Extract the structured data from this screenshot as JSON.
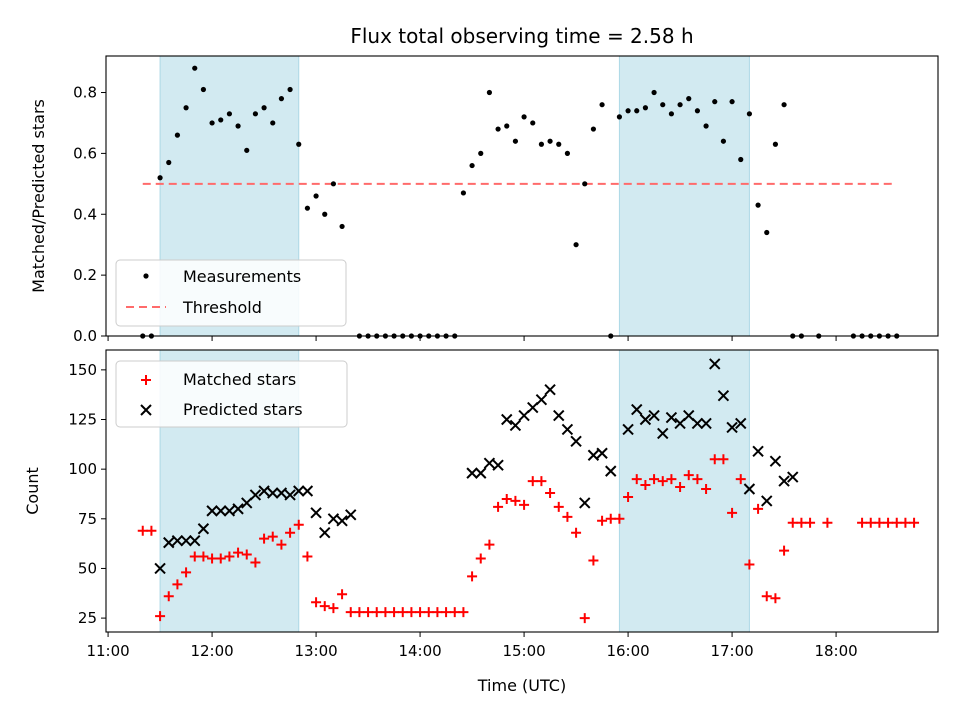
{
  "title": "Flux total observing time = 2.58 h",
  "colors": {
    "band": "#add8e6",
    "threshold": "#ff6b6b",
    "matched": "#ff0000",
    "predicted": "#000000",
    "measure": "#000000"
  },
  "chart_data": [
    {
      "type": "scatter",
      "panel": "top",
      "ylabel": "Matched/Predicted stars",
      "xlabel": "",
      "xlim_hours": [
        10.98,
        18.98
      ],
      "ylim": [
        0,
        0.92
      ],
      "yticks": [
        0.0,
        0.2,
        0.4,
        0.6,
        0.8
      ],
      "ytick_labels": [
        "0.0",
        "0.2",
        "0.4",
        "0.6",
        "0.8"
      ],
      "grid": false,
      "legend": {
        "placement": "lower-left",
        "entries": [
          "Measurements",
          "Threshold"
        ]
      },
      "shaded_intervals": [
        [
          "11:30",
          "12:50"
        ],
        [
          "15:55",
          "17:10"
        ]
      ],
      "threshold": {
        "name": "Threshold",
        "value": 0.5,
        "x_range": [
          "11:20",
          "18:35"
        ]
      },
      "series": [
        {
          "name": "Measurements",
          "marker": "dot",
          "points": [
            [
              "11:20",
              0
            ],
            [
              "11:25",
              0
            ],
            [
              "11:30",
              0.52
            ],
            [
              "11:35",
              0.57
            ],
            [
              "11:40",
              0.66
            ],
            [
              "11:45",
              0.75
            ],
            [
              "11:50",
              0.88
            ],
            [
              "11:55",
              0.81
            ],
            [
              "12:00",
              0.7
            ],
            [
              "12:05",
              0.71
            ],
            [
              "12:10",
              0.73
            ],
            [
              "12:15",
              0.69
            ],
            [
              "12:20",
              0.61
            ],
            [
              "12:25",
              0.73
            ],
            [
              "12:30",
              0.75
            ],
            [
              "12:35",
              0.7
            ],
            [
              "12:40",
              0.78
            ],
            [
              "12:45",
              0.81
            ],
            [
              "12:50",
              0.63
            ],
            [
              "12:55",
              0.42
            ],
            [
              "13:00",
              0.46
            ],
            [
              "13:05",
              0.4
            ],
            [
              "13:10",
              0.5
            ],
            [
              "13:15",
              0.36
            ],
            [
              "13:25",
              0
            ],
            [
              "13:30",
              0
            ],
            [
              "13:35",
              0
            ],
            [
              "13:40",
              0
            ],
            [
              "13:45",
              0
            ],
            [
              "13:50",
              0
            ],
            [
              "13:55",
              0
            ],
            [
              "14:00",
              0
            ],
            [
              "14:05",
              0
            ],
            [
              "14:10",
              0
            ],
            [
              "14:15",
              0
            ],
            [
              "14:20",
              0
            ],
            [
              "14:25",
              0.47
            ],
            [
              "14:30",
              0.56
            ],
            [
              "14:35",
              0.6
            ],
            [
              "14:40",
              0.8
            ],
            [
              "14:45",
              0.68
            ],
            [
              "14:50",
              0.69
            ],
            [
              "14:55",
              0.64
            ],
            [
              "15:00",
              0.72
            ],
            [
              "15:05",
              0.7
            ],
            [
              "15:10",
              0.63
            ],
            [
              "15:15",
              0.64
            ],
            [
              "15:20",
              0.63
            ],
            [
              "15:25",
              0.6
            ],
            [
              "15:30",
              0.3
            ],
            [
              "15:35",
              0.5
            ],
            [
              "15:40",
              0.68
            ],
            [
              "15:45",
              0.76
            ],
            [
              "15:50",
              0
            ],
            [
              "15:55",
              0.72
            ],
            [
              "16:00",
              0.74
            ],
            [
              "16:05",
              0.74
            ],
            [
              "16:10",
              0.75
            ],
            [
              "16:15",
              0.8
            ],
            [
              "16:20",
              0.76
            ],
            [
              "16:25",
              0.73
            ],
            [
              "16:30",
              0.76
            ],
            [
              "16:35",
              0.78
            ],
            [
              "16:40",
              0.74
            ],
            [
              "16:45",
              0.69
            ],
            [
              "16:50",
              0.77
            ],
            [
              "16:55",
              0.64
            ],
            [
              "17:00",
              0.77
            ],
            [
              "17:05",
              0.58
            ],
            [
              "17:10",
              0.73
            ],
            [
              "17:15",
              0.43
            ],
            [
              "17:20",
              0.34
            ],
            [
              "17:25",
              0.63
            ],
            [
              "17:30",
              0.76
            ],
            [
              "17:35",
              0
            ],
            [
              "17:40",
              0
            ],
            [
              "17:50",
              0
            ],
            [
              "18:10",
              0
            ],
            [
              "18:15",
              0
            ],
            [
              "18:20",
              0
            ],
            [
              "18:25",
              0
            ],
            [
              "18:30",
              0
            ],
            [
              "18:35",
              0
            ]
          ]
        }
      ]
    },
    {
      "type": "scatter",
      "panel": "bottom",
      "ylabel": "Count",
      "xlabel": "Time (UTC)",
      "xlim_hours": [
        10.98,
        18.98
      ],
      "xticks": [
        "11:00",
        "12:00",
        "13:00",
        "14:00",
        "15:00",
        "16:00",
        "17:00",
        "18:00"
      ],
      "ylim": [
        18,
        160
      ],
      "yticks": [
        25,
        50,
        75,
        100,
        125,
        150
      ],
      "grid": false,
      "legend": {
        "placement": "top-left",
        "entries": [
          "Matched stars",
          "Predicted stars"
        ]
      },
      "shaded_intervals": [
        [
          "11:30",
          "12:50"
        ],
        [
          "15:55",
          "17:10"
        ]
      ],
      "series": [
        {
          "name": "Matched stars",
          "marker": "plus",
          "points": [
            [
              "11:20",
              69
            ],
            [
              "11:25",
              69
            ],
            [
              "11:30",
              26
            ],
            [
              "11:35",
              36
            ],
            [
              "11:40",
              42
            ],
            [
              "11:45",
              48
            ],
            [
              "11:50",
              56
            ],
            [
              "11:55",
              56
            ],
            [
              "12:00",
              55
            ],
            [
              "12:05",
              55
            ],
            [
              "12:10",
              56
            ],
            [
              "12:15",
              58
            ],
            [
              "12:20",
              57
            ],
            [
              "12:25",
              53
            ],
            [
              "12:30",
              65
            ],
            [
              "12:35",
              66
            ],
            [
              "12:40",
              62
            ],
            [
              "12:45",
              68
            ],
            [
              "12:50",
              72
            ],
            [
              "12:55",
              56
            ],
            [
              "13:00",
              33
            ],
            [
              "13:05",
              31
            ],
            [
              "13:10",
              30
            ],
            [
              "13:15",
              37
            ],
            [
              "13:20",
              28
            ],
            [
              "13:25",
              28
            ],
            [
              "13:30",
              28
            ],
            [
              "13:35",
              28
            ],
            [
              "13:40",
              28
            ],
            [
              "13:45",
              28
            ],
            [
              "13:50",
              28
            ],
            [
              "13:55",
              28
            ],
            [
              "14:00",
              28
            ],
            [
              "14:05",
              28
            ],
            [
              "14:10",
              28
            ],
            [
              "14:15",
              28
            ],
            [
              "14:20",
              28
            ],
            [
              "14:25",
              28
            ],
            [
              "14:30",
              46
            ],
            [
              "14:35",
              55
            ],
            [
              "14:40",
              62
            ],
            [
              "14:45",
              81
            ],
            [
              "14:50",
              85
            ],
            [
              "14:55",
              84
            ],
            [
              "15:00",
              82
            ],
            [
              "15:05",
              94
            ],
            [
              "15:10",
              94
            ],
            [
              "15:15",
              88
            ],
            [
              "15:20",
              81
            ],
            [
              "15:25",
              76
            ],
            [
              "15:30",
              68
            ],
            [
              "15:35",
              25
            ],
            [
              "15:40",
              54
            ],
            [
              "15:45",
              74
            ],
            [
              "15:50",
              75
            ],
            [
              "15:55",
              75
            ],
            [
              "16:00",
              86
            ],
            [
              "16:05",
              95
            ],
            [
              "16:10",
              92
            ],
            [
              "16:15",
              95
            ],
            [
              "16:20",
              94
            ],
            [
              "16:25",
              95
            ],
            [
              "16:30",
              91
            ],
            [
              "16:35",
              97
            ],
            [
              "16:40",
              95
            ],
            [
              "16:45",
              90
            ],
            [
              "16:50",
              105
            ],
            [
              "16:55",
              105
            ],
            [
              "17:00",
              78
            ],
            [
              "17:05",
              95
            ],
            [
              "17:10",
              52
            ],
            [
              "17:15",
              80
            ],
            [
              "17:20",
              36
            ],
            [
              "17:25",
              35
            ],
            [
              "17:30",
              59
            ],
            [
              "17:35",
              73
            ],
            [
              "17:40",
              73
            ],
            [
              "17:45",
              73
            ],
            [
              "17:55",
              73
            ],
            [
              "18:15",
              73
            ],
            [
              "18:20",
              73
            ],
            [
              "18:25",
              73
            ],
            [
              "18:30",
              73
            ],
            [
              "18:35",
              73
            ],
            [
              "18:40",
              73
            ],
            [
              "18:45",
              73
            ]
          ]
        },
        {
          "name": "Predicted stars",
          "marker": "x",
          "points": [
            [
              "11:30",
              50
            ],
            [
              "11:35",
              63
            ],
            [
              "11:40",
              64
            ],
            [
              "11:45",
              64
            ],
            [
              "11:50",
              64
            ],
            [
              "11:55",
              70
            ],
            [
              "12:00",
              79
            ],
            [
              "12:05",
              79
            ],
            [
              "12:10",
              79
            ],
            [
              "12:15",
              80
            ],
            [
              "12:20",
              83
            ],
            [
              "12:25",
              87
            ],
            [
              "12:30",
              89
            ],
            [
              "12:35",
              88
            ],
            [
              "12:40",
              88
            ],
            [
              "12:45",
              87
            ],
            [
              "12:50",
              89
            ],
            [
              "12:55",
              89
            ],
            [
              "13:00",
              78
            ],
            [
              "13:05",
              68
            ],
            [
              "13:10",
              75
            ],
            [
              "13:15",
              74
            ],
            [
              "13:20",
              77
            ],
            [
              "14:30",
              98
            ],
            [
              "14:35",
              98
            ],
            [
              "14:40",
              103
            ],
            [
              "14:45",
              102
            ],
            [
              "14:50",
              125
            ],
            [
              "14:55",
              122
            ],
            [
              "15:00",
              127
            ],
            [
              "15:05",
              131
            ],
            [
              "15:10",
              135
            ],
            [
              "15:15",
              140
            ],
            [
              "15:20",
              127
            ],
            [
              "15:25",
              120
            ],
            [
              "15:30",
              114
            ],
            [
              "15:35",
              83
            ],
            [
              "15:40",
              107
            ],
            [
              "15:45",
              108
            ],
            [
              "15:50",
              99
            ],
            [
              "16:00",
              120
            ],
            [
              "16:05",
              130
            ],
            [
              "16:10",
              125
            ],
            [
              "16:15",
              127
            ],
            [
              "16:20",
              118
            ],
            [
              "16:25",
              126
            ],
            [
              "16:30",
              123
            ],
            [
              "16:35",
              127
            ],
            [
              "16:40",
              123
            ],
            [
              "16:45",
              123
            ],
            [
              "16:50",
              153
            ],
            [
              "16:55",
              137
            ],
            [
              "17:00",
              121
            ],
            [
              "17:05",
              123
            ],
            [
              "17:10",
              90
            ],
            [
              "17:15",
              109
            ],
            [
              "17:20",
              84
            ],
            [
              "17:25",
              104
            ],
            [
              "17:30",
              94
            ],
            [
              "17:35",
              96
            ]
          ]
        }
      ]
    }
  ]
}
